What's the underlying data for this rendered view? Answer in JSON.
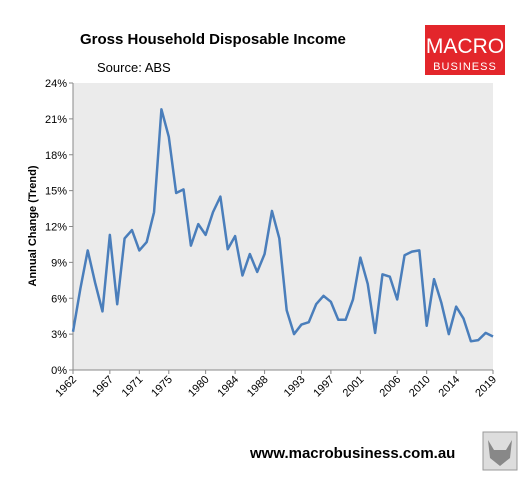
{
  "chart_data": {
    "type": "line",
    "title": "Gross Household Disposable Income",
    "subtitle": "Source: ABS",
    "y_label": "Annual Change (Trend)",
    "logo": {
      "top": "MACRO",
      "bottom": "BUSINESS"
    },
    "footer": "www.macrobusiness.com.au",
    "color": "#4a7ebb",
    "grid": false,
    "x": [
      1962,
      1963,
      1964,
      1965,
      1966,
      1967,
      1968,
      1969,
      1970,
      1971,
      1972,
      1973,
      1974,
      1975,
      1976,
      1977,
      1978,
      1979,
      1980,
      1981,
      1982,
      1983,
      1984,
      1985,
      1986,
      1987,
      1988,
      1989,
      1990,
      1991,
      1992,
      1993,
      1994,
      1995,
      1996,
      1997,
      1998,
      1999,
      2000,
      2001,
      2002,
      2003,
      2004,
      2005,
      2006,
      2007,
      2008,
      2009,
      2010,
      2011,
      2012,
      2013,
      2014,
      2015,
      2016,
      2017,
      2018,
      2019
    ],
    "values": [
      3.2,
      6.8,
      10.0,
      7.3,
      4.9,
      11.3,
      5.5,
      11.0,
      11.7,
      10.0,
      10.7,
      13.2,
      21.8,
      19.5,
      14.8,
      15.1,
      10.4,
      12.2,
      11.3,
      13.2,
      14.5,
      10.1,
      11.2,
      7.9,
      9.7,
      8.2,
      9.7,
      13.3,
      11.0,
      5.0,
      3.0,
      3.8,
      4.0,
      5.5,
      6.2,
      5.7,
      4.2,
      4.2,
      5.9,
      9.4,
      7.2,
      3.1,
      8.0,
      7.8,
      5.9,
      9.6,
      9.9,
      10.0,
      3.7,
      7.6,
      5.6,
      3.0,
      5.3,
      4.3,
      2.4,
      2.5,
      3.1,
      2.8
    ],
    "xlim": [
      1962,
      2019
    ],
    "xticks": [
      1962,
      1967,
      1971,
      1975,
      1980,
      1984,
      1988,
      1993,
      1997,
      2001,
      2006,
      2010,
      2014,
      2019
    ],
    "ylim": [
      0,
      24
    ],
    "yticks": [
      {
        "value": 0,
        "label": "0%"
      },
      {
        "value": 3,
        "label": "3%"
      },
      {
        "value": 6,
        "label": "6%"
      },
      {
        "value": 9,
        "label": "9%"
      },
      {
        "value": 12,
        "label": "12%"
      },
      {
        "value": 15,
        "label": "15%"
      },
      {
        "value": 18,
        "label": "18%"
      },
      {
        "value": 21,
        "label": "21%"
      },
      {
        "value": 24,
        "label": "24%"
      }
    ]
  }
}
